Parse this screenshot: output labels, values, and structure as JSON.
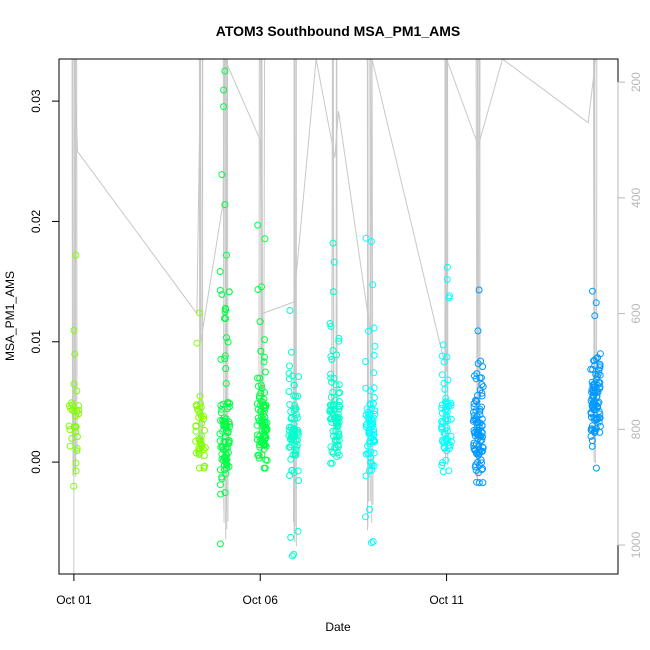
{
  "chart_data": {
    "type": "scatter",
    "title": "ATOM3 Southbound MSA_PM1_AMS",
    "xlabel": "Date",
    "ylabel": "MSA_PM1_AMS",
    "x_tick_labels": [
      "Oct 01",
      "Oct 06",
      "Oct 11"
    ],
    "x_tick_values_days": [
      1,
      6,
      11
    ],
    "xlim_days": [
      0.6,
      15.6
    ],
    "y_ticks": [
      0.0,
      0.01,
      0.02,
      0.03
    ],
    "y_tick_labels": [
      "0.00",
      "0.01",
      "0.02",
      "0.03"
    ],
    "ylim": [
      -0.0093,
      0.0335
    ],
    "right_axis": {
      "ticks": [
        200,
        400,
        600,
        800,
        1000
      ],
      "ylim": [
        1050,
        160
      ],
      "color": "#b8b8b8"
    },
    "grid": false,
    "legend": "none",
    "point_colors": [
      "#7fff00",
      "#00ff44",
      "#00ffcc",
      "#00ffff",
      "#0099ff"
    ],
    "line_color": "#c8c8c8",
    "clusters": [
      {
        "x": 1.0,
        "y_center": 0.0025,
        "n": 30,
        "min": -0.002,
        "max": 0.0172
      },
      {
        "x": 4.4,
        "y_center": 0.002,
        "n": 40,
        "min": -0.0005,
        "max": 0.0124
      },
      {
        "x": 5.05,
        "y_center": 0.0015,
        "n": 95,
        "min": -0.0068,
        "max": 0.0325
      },
      {
        "x": 6.05,
        "y_center": 0.003,
        "n": 85,
        "min": -0.0005,
        "max": 0.0197
      },
      {
        "x": 6.9,
        "y_center": 0.0025,
        "n": 75,
        "min": -0.0078,
        "max": 0.0126
      },
      {
        "x": 8.0,
        "y_center": 0.003,
        "n": 80,
        "min": -0.0001,
        "max": 0.0182
      },
      {
        "x": 8.95,
        "y_center": 0.002,
        "n": 75,
        "min": -0.0067,
        "max": 0.0186
      },
      {
        "x": 11.0,
        "y_center": 0.0025,
        "n": 60,
        "min": -0.0008,
        "max": 0.0162
      },
      {
        "x": 11.85,
        "y_center": 0.002,
        "n": 90,
        "min": -0.0017,
        "max": 0.0143
      },
      {
        "x": 15.0,
        "y_center": 0.0045,
        "n": 90,
        "min": -0.0005,
        "max": 0.0142
      }
    ],
    "altitude_trace_right_units": [
      {
        "x": 1.0,
        "y": 1050
      },
      {
        "x": 1.0,
        "y": 160
      },
      {
        "x": 1.1,
        "y": 320
      },
      {
        "x": 4.3,
        "y": 600
      },
      {
        "x": 4.4,
        "y": 160
      },
      {
        "x": 4.4,
        "y": 650
      },
      {
        "x": 5.0,
        "y": 410
      },
      {
        "x": 5.05,
        "y": 160
      },
      {
        "x": 6.0,
        "y": 300
      },
      {
        "x": 6.05,
        "y": 600
      },
      {
        "x": 6.9,
        "y": 580
      },
      {
        "x": 7.5,
        "y": 160
      },
      {
        "x": 8.0,
        "y": 330
      },
      {
        "x": 8.1,
        "y": 250
      },
      {
        "x": 8.95,
        "y": 630
      },
      {
        "x": 9.0,
        "y": 160
      },
      {
        "x": 11.0,
        "y": 700
      },
      {
        "x": 11.0,
        "y": 160
      },
      {
        "x": 11.85,
        "y": 310
      },
      {
        "x": 12.5,
        "y": 160
      },
      {
        "x": 14.8,
        "y": 270
      },
      {
        "x": 15.0,
        "y": 160
      }
    ]
  }
}
